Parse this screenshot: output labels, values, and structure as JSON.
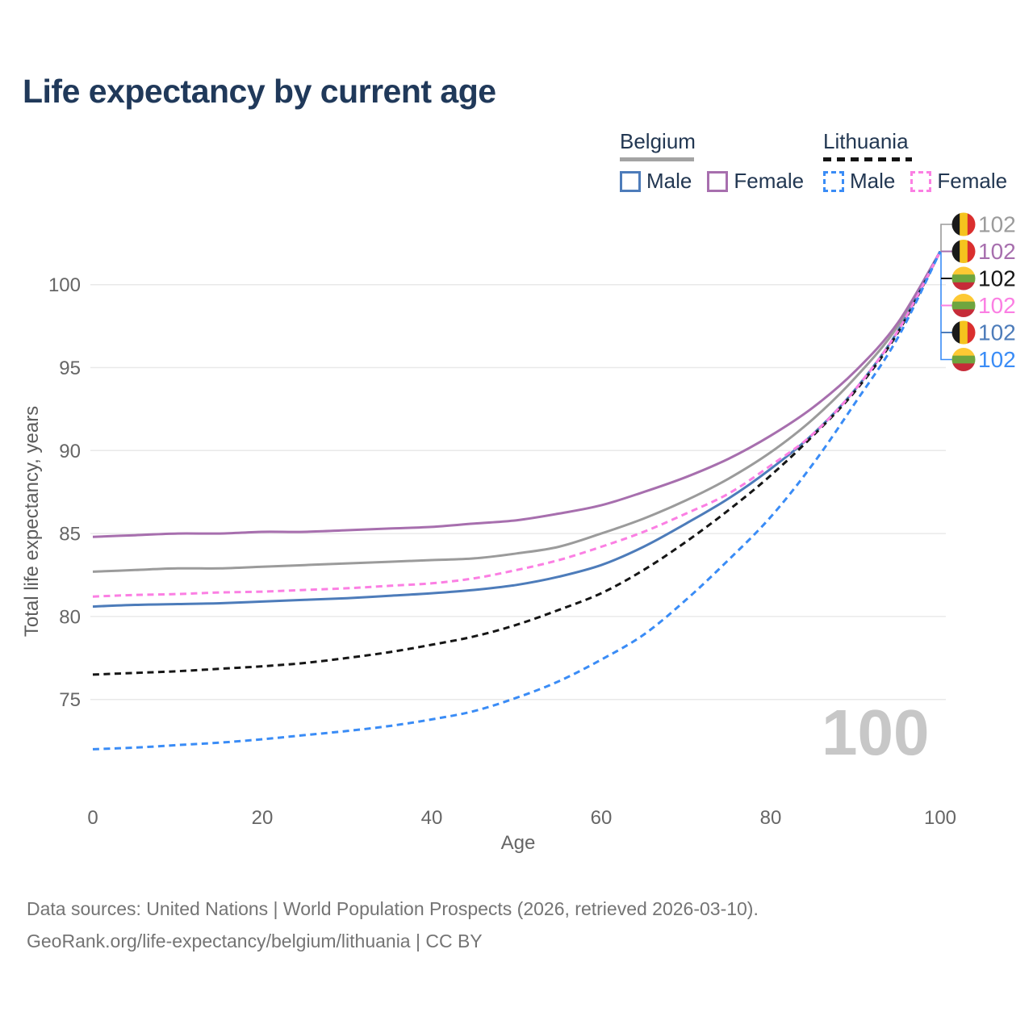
{
  "title": "Life expectancy by current age",
  "legend": {
    "groups": [
      {
        "label": "Belgium",
        "style": "solid",
        "items": [
          {
            "key": "be_male",
            "label": "Male"
          },
          {
            "key": "be_female",
            "label": "Female"
          }
        ]
      },
      {
        "label": "Lithuania",
        "style": "dashed",
        "items": [
          {
            "key": "lt_male",
            "label": "Male"
          },
          {
            "key": "lt_female",
            "label": "Female"
          }
        ]
      }
    ]
  },
  "chart_data": {
    "type": "line",
    "title": "Life expectancy by current age",
    "xlabel": "Age",
    "ylabel": "Total life expectancy, years",
    "x_ticks": [
      0,
      20,
      40,
      60,
      80,
      100
    ],
    "y_ticks": [
      75,
      80,
      85,
      90,
      95,
      100
    ],
    "xlim": [
      0,
      100
    ],
    "ylim": [
      71.5,
      103
    ],
    "grid": "horizontal",
    "x": [
      0,
      5,
      10,
      15,
      20,
      25,
      30,
      35,
      40,
      45,
      50,
      55,
      60,
      65,
      70,
      75,
      80,
      85,
      90,
      95,
      100
    ],
    "series": [
      {
        "key": "be_total",
        "name": "Belgium total",
        "country": "be",
        "color": "#9b9b9b",
        "dash": false,
        "row": 0,
        "end_label": "102",
        "values": [
          82.7,
          82.8,
          82.9,
          82.9,
          83.0,
          83.1,
          83.2,
          83.3,
          83.4,
          83.5,
          83.8,
          84.2,
          85.0,
          85.9,
          87.0,
          88.3,
          89.9,
          91.9,
          94.4,
          97.5,
          102
        ]
      },
      {
        "key": "be_female",
        "name": "Belgium female",
        "country": "be",
        "color": "#a76fae",
        "dash": false,
        "row": 1,
        "end_label": "102",
        "values": [
          84.8,
          84.9,
          85.0,
          85.0,
          85.1,
          85.1,
          85.2,
          85.3,
          85.4,
          85.6,
          85.8,
          86.2,
          86.7,
          87.5,
          88.4,
          89.5,
          90.9,
          92.6,
          94.8,
          97.7,
          102
        ]
      },
      {
        "key": "be_male",
        "name": "Belgium male",
        "country": "be",
        "color": "#4d7cba",
        "dash": false,
        "row": 4,
        "end_label": "102",
        "values": [
          80.6,
          80.7,
          80.75,
          80.8,
          80.9,
          81.0,
          81.1,
          81.25,
          81.4,
          81.6,
          81.9,
          82.4,
          83.1,
          84.2,
          85.6,
          87.1,
          88.9,
          91.0,
          93.7,
          97.2,
          102
        ]
      },
      {
        "key": "lt_total",
        "name": "Lithuania total",
        "country": "lt",
        "color": "#161616",
        "dash": true,
        "row": 2,
        "end_label": "102",
        "values": [
          76.5,
          76.6,
          76.7,
          76.85,
          77.0,
          77.2,
          77.5,
          77.85,
          78.3,
          78.8,
          79.5,
          80.4,
          81.4,
          82.8,
          84.5,
          86.4,
          88.5,
          90.9,
          93.6,
          97.1,
          102
        ]
      },
      {
        "key": "lt_female",
        "name": "Lithuania female",
        "country": "lt",
        "color": "#fb7fe3",
        "dash": true,
        "row": 3,
        "end_label": "102",
        "values": [
          81.2,
          81.3,
          81.35,
          81.45,
          81.5,
          81.6,
          81.7,
          81.85,
          82.0,
          82.3,
          82.8,
          83.4,
          84.2,
          85.1,
          86.2,
          87.4,
          89.1,
          91.0,
          93.7,
          97.2,
          102
        ]
      },
      {
        "key": "lt_male",
        "name": "Lithuania male",
        "country": "lt",
        "color": "#3a8cf6",
        "dash": true,
        "row": 5,
        "end_label": "102",
        "values": [
          72.0,
          72.1,
          72.25,
          72.4,
          72.6,
          72.85,
          73.1,
          73.4,
          73.8,
          74.3,
          75.1,
          76.1,
          77.4,
          78.9,
          81.0,
          83.4,
          86.0,
          89.2,
          92.9,
          96.8,
          102
        ]
      }
    ],
    "flag_colors": {
      "be": [
        "#1a1a1a",
        "#f5c31e",
        "#da2f2e"
      ],
      "lt": [
        "#fdc934",
        "#6ea53f",
        "#c62b38"
      ]
    },
    "axis_text_color": "#666666",
    "gridline_color": "#e9e9e9"
  },
  "age_indicator": "100",
  "footer": {
    "line1": "Data sources: United Nations | World Population Prospects (2026, retrieved 2026-03-10).",
    "line2": "GeoRank.org/life-expectancy/belgium/lithuania | CC BY"
  }
}
